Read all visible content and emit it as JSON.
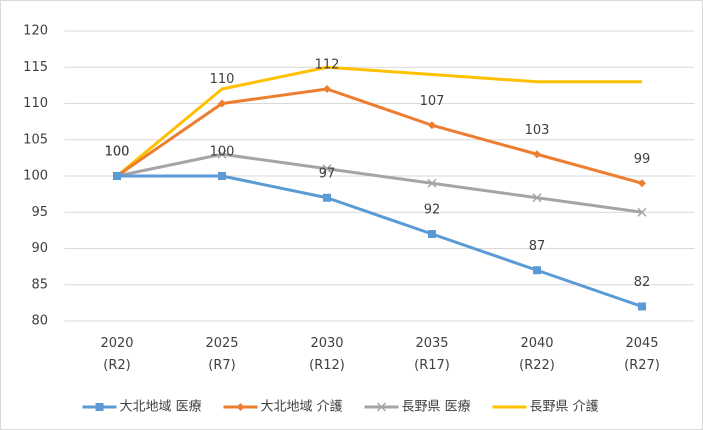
{
  "chart_data": {
    "type": "line",
    "categories": [
      "2020\n(R2)",
      "2025\n(R7)",
      "2030\n(R12)",
      "2035\n(R17)",
      "2040\n(R22)",
      "2045\n(R27)"
    ],
    "series": [
      {
        "name": "大北地域 医療",
        "color": "#5b9bd5",
        "marker": "square",
        "values": [
          100,
          100,
          97,
          92,
          87,
          82
        ],
        "data_labels": true
      },
      {
        "name": "大北地域 介護",
        "color": "#ed7d31",
        "marker": "diamond",
        "values": [
          100,
          110,
          112,
          107,
          103,
          99
        ],
        "data_labels": true
      },
      {
        "name": "長野県 医療",
        "color": "#a5a5a5",
        "marker": "x",
        "values": [
          100,
          103,
          101,
          99,
          97,
          95
        ],
        "data_labels": false
      },
      {
        "name": "長野県 介護",
        "color": "#ffc000",
        "marker": "none",
        "values": [
          100,
          112,
          115,
          114,
          113,
          113
        ],
        "data_labels": false
      }
    ],
    "ylim": [
      80,
      120
    ],
    "yticks": [
      80,
      85,
      90,
      95,
      100,
      105,
      110,
      115,
      120
    ],
    "grid": true,
    "legend": "bottom"
  }
}
